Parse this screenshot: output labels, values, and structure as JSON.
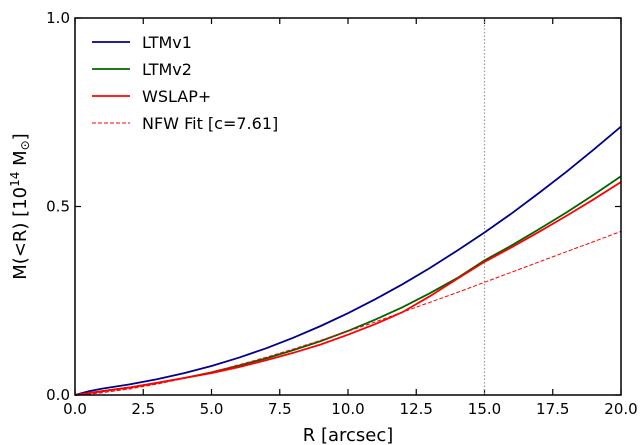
{
  "chart_data": {
    "type": "line",
    "xlabel": "R [arcsec]",
    "ylabel": {
      "main": "M(<R) [10",
      "exponent": "14",
      "unit": " M",
      "sun": "⊙",
      "close": "]"
    },
    "xlim": [
      0,
      20
    ],
    "ylim": [
      0,
      1.0
    ],
    "x_ticks": [
      0.0,
      2.5,
      5.0,
      7.5,
      10.0,
      12.5,
      15.0,
      17.5,
      20.0
    ],
    "x_tick_labels": [
      "0.0",
      "2.5",
      "5.0",
      "7.5",
      "10.0",
      "12.5",
      "15.0",
      "17.5",
      "20.0"
    ],
    "y_ticks": [
      0.0,
      0.5,
      1.0
    ],
    "y_tick_labels": [
      "0.0",
      "0.5",
      "1.0"
    ],
    "grid": false,
    "legend_position": "top-left",
    "vline": {
      "x": 15.0,
      "color": "#999999",
      "style": "dotted"
    },
    "series": [
      {
        "name": "LTMv1",
        "color": "#00008b",
        "style": "solid",
        "x": [
          0.5,
          1,
          2,
          3,
          4,
          5,
          6,
          7,
          8,
          9,
          10,
          11,
          12,
          13,
          14,
          15,
          16,
          17,
          18,
          19,
          20
        ],
        "y": [
          0.01,
          0.017,
          0.028,
          0.042,
          0.058,
          0.077,
          0.099,
          0.124,
          0.152,
          0.183,
          0.217,
          0.254,
          0.294,
          0.337,
          0.383,
          0.431,
          0.482,
          0.536,
          0.592,
          0.651,
          0.712
        ]
      },
      {
        "name": "LTMv2",
        "color": "#006400",
        "style": "solid",
        "x": [
          0.5,
          1,
          2,
          3,
          4,
          5,
          6,
          7,
          8,
          9,
          10,
          11,
          12,
          13,
          14,
          15,
          16,
          17,
          18,
          19,
          20
        ],
        "y": [
          0.005,
          0.01,
          0.02,
          0.032,
          0.045,
          0.06,
          0.078,
          0.097,
          0.119,
          0.143,
          0.17,
          0.2,
          0.233,
          0.27,
          0.31,
          0.357,
          0.397,
          0.44,
          0.484,
          0.531,
          0.58
        ]
      },
      {
        "name": "WSLAP+",
        "color": "#ff0000",
        "style": "solid",
        "x": [
          0.5,
          1,
          2,
          3,
          4,
          5,
          6,
          7,
          8,
          9,
          10,
          11,
          12,
          13,
          14,
          15,
          16,
          17,
          18,
          19,
          20
        ],
        "y": [
          0.005,
          0.01,
          0.02,
          0.032,
          0.045,
          0.058,
          0.074,
          0.092,
          0.112,
          0.134,
          0.16,
          0.188,
          0.22,
          0.262,
          0.308,
          0.353,
          0.392,
          0.433,
          0.475,
          0.519,
          0.565
        ]
      },
      {
        "name": "NFW Fit [c=7.61]",
        "color": "#ff0000",
        "style": "dashed",
        "x": [
          0.5,
          1,
          2,
          3,
          4,
          5,
          6,
          7,
          8,
          9,
          10,
          11,
          12,
          13,
          14,
          15,
          16,
          17,
          18,
          19,
          20
        ],
        "y": [
          0.002,
          0.006,
          0.016,
          0.029,
          0.044,
          0.061,
          0.08,
          0.1,
          0.122,
          0.145,
          0.169,
          0.194,
          0.22,
          0.246,
          0.272,
          0.299,
          0.326,
          0.353,
          0.38,
          0.407,
          0.434
        ]
      }
    ]
  }
}
